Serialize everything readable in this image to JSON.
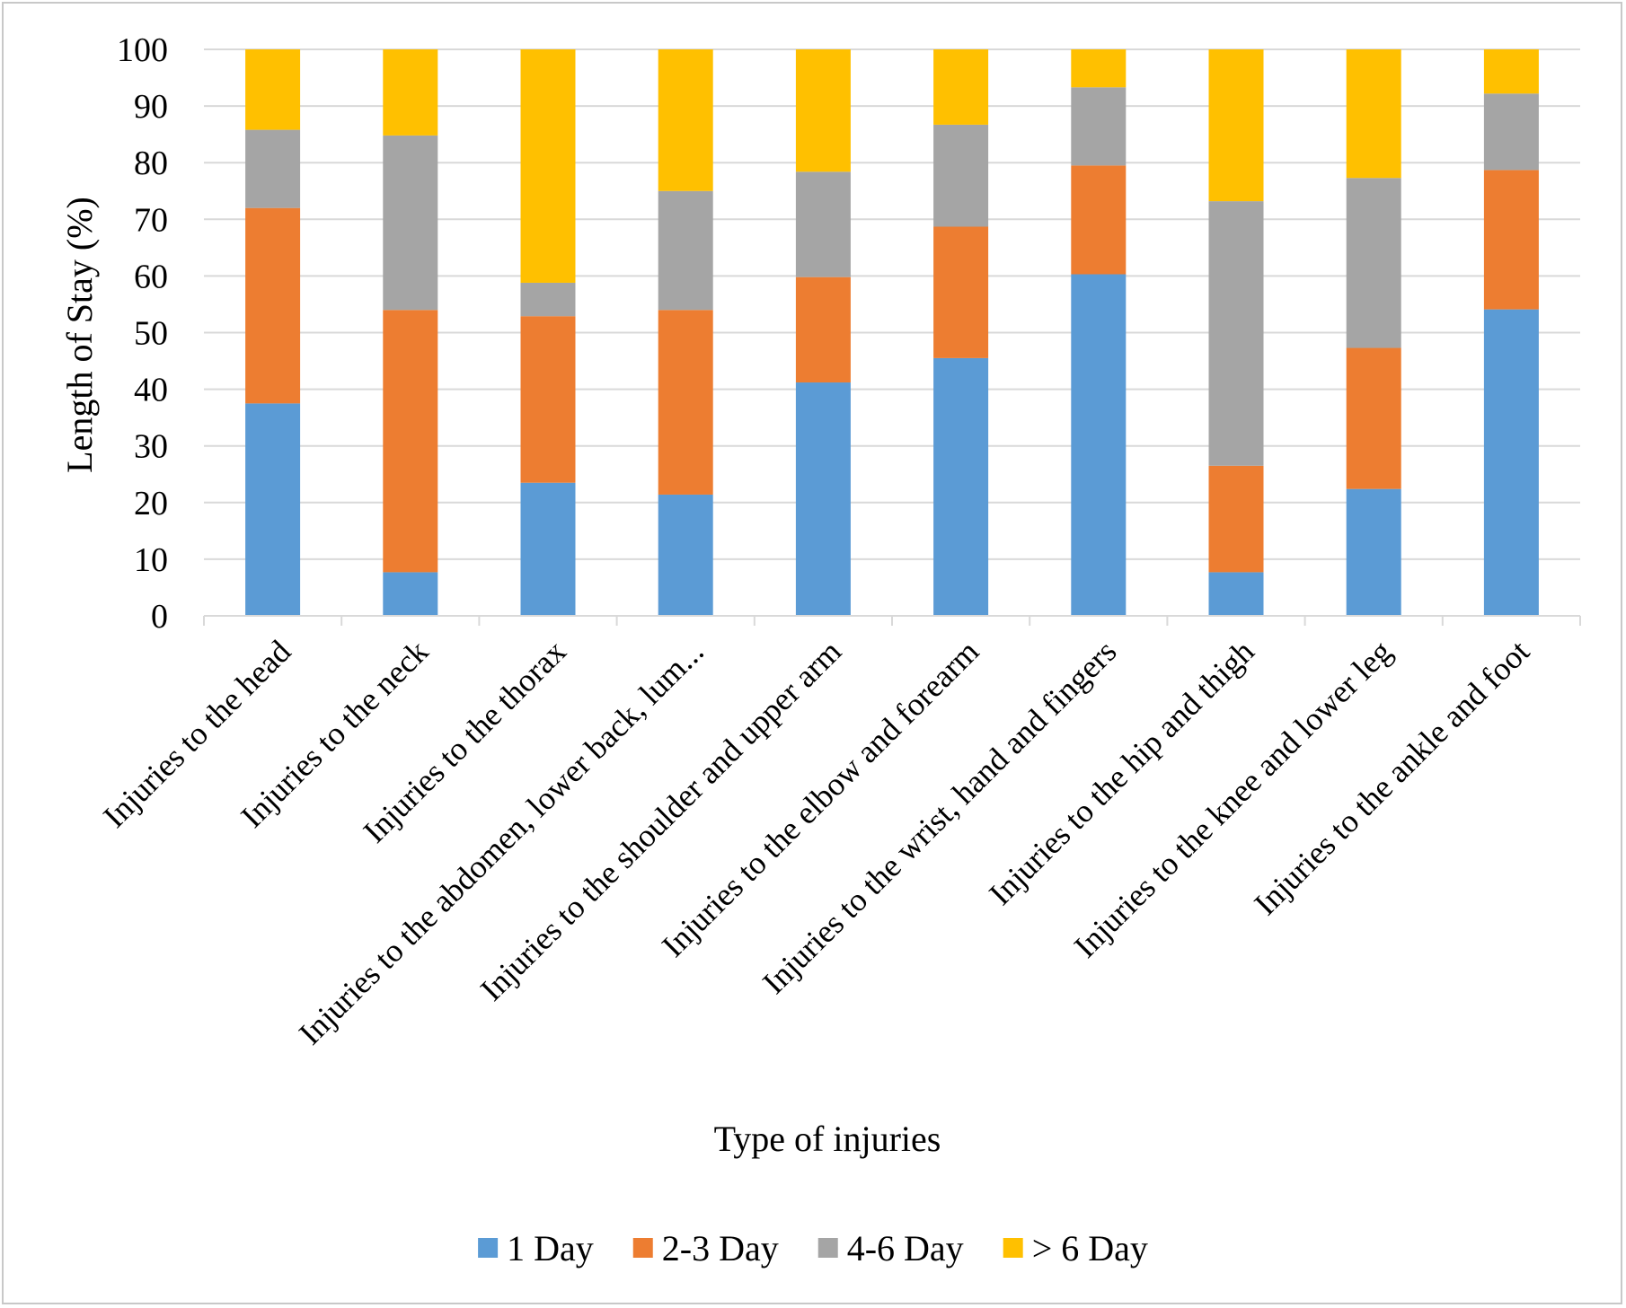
{
  "chart_data": {
    "type": "bar",
    "stacked": true,
    "xlabel": "Type of injuries",
    "ylabel": "Length of Stay (%)",
    "ylim": [
      0,
      100
    ],
    "yticks": [
      0,
      10,
      20,
      30,
      40,
      50,
      60,
      70,
      80,
      90,
      100
    ],
    "grid": true,
    "legend_position": "bottom",
    "categories": [
      "Injuries to the head",
      "Injuries to the neck",
      "Injuries to the thorax",
      "Injuries to the abdomen, lower back, lum...",
      "Injuries to the shoulder and upper arm",
      "Injuries to the elbow and forearm",
      "Injuries to the wrist, hand and fingers",
      "Injuries to the hip and thigh",
      "Injuries to the knee and lower leg",
      "Injuries to the ankle and foot"
    ],
    "series": [
      {
        "name": "1 Day",
        "color": "#5b9bd5",
        "values": [
          37.5,
          7.7,
          23.5,
          21.4,
          41.2,
          45.5,
          60.3,
          7.7,
          22.4,
          54.1
        ]
      },
      {
        "name": "2-3 Day",
        "color": "#ed7d31",
        "values": [
          34.5,
          46.3,
          29.4,
          32.6,
          18.6,
          23.2,
          19.2,
          18.8,
          24.9,
          24.6
        ]
      },
      {
        "name": "4-6 Day",
        "color": "#a5a5a5",
        "values": [
          13.8,
          30.8,
          5.9,
          21.0,
          18.6,
          18.0,
          13.8,
          46.7,
          30.0,
          13.5
        ]
      },
      {
        "name": "> 6 Day",
        "color": "#ffc000",
        "values": [
          14.2,
          15.2,
          41.2,
          25.0,
          21.6,
          13.3,
          6.7,
          26.8,
          22.7,
          7.8
        ]
      }
    ]
  }
}
